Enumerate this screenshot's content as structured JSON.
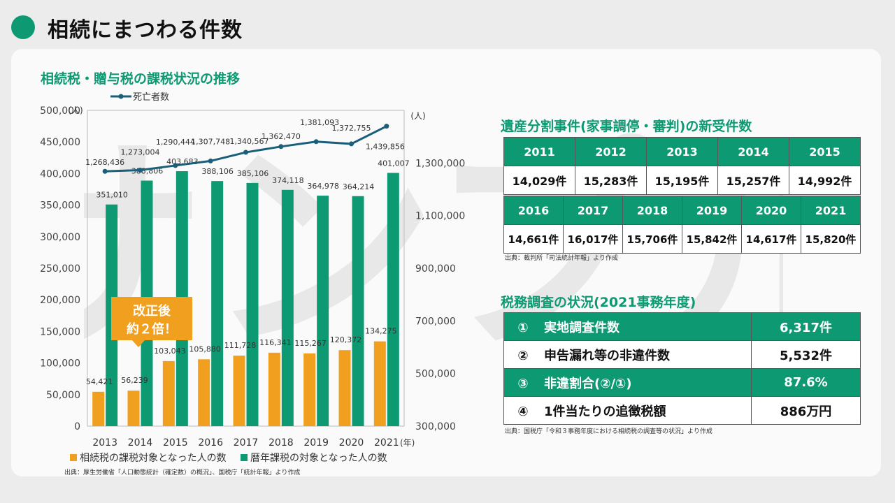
{
  "page": {
    "title": "相続にまつわる件数"
  },
  "chart_section": {
    "title": "相続税・贈与税の課税状況の推移",
    "source": "出典：厚生労働省「人口動態統計（確定数）の概況」、国税庁「統計年報」より作成"
  },
  "watermark": "サンプル",
  "chart_data": {
    "type": "bar",
    "categories": [
      "2013",
      "2014",
      "2015",
      "2016",
      "2017",
      "2018",
      "2019",
      "2020",
      "2021"
    ],
    "x_unit": "(年)",
    "y_left": {
      "unit": "(人)",
      "range": [
        0,
        500000
      ],
      "ticks": [
        "0",
        "50,000",
        "100,000",
        "150,000",
        "200,000",
        "250,000",
        "300,000",
        "350,000",
        "400,000",
        "450,000",
        "500,000"
      ]
    },
    "y_right": {
      "unit": "(人)",
      "range": [
        300000,
        1500000
      ],
      "ticks": [
        "300,000",
        "500,000",
        "700,000",
        "900,000",
        "1,100,000",
        "1,300,000"
      ]
    },
    "series": [
      {
        "name": "相続税の課税対象となった人の数",
        "type": "bar",
        "axis": "left",
        "color": "#f0a01e",
        "values": [
          54421,
          56239,
          103043,
          105880,
          111728,
          116341,
          115267,
          120372,
          134275
        ],
        "labels": [
          "54,421",
          "56,239",
          "103,043",
          "105,880",
          "111,728",
          "116,341",
          "115,267",
          "120,372",
          "134,275"
        ]
      },
      {
        "name": "暦年課税の対象となった人の数",
        "type": "bar",
        "axis": "left",
        "color": "#0d9a73",
        "values": [
          351010,
          388806,
          403683,
          388106,
          385106,
          374118,
          364978,
          364214,
          401007
        ],
        "labels": [
          "351,010",
          "388,806",
          "403,683",
          "388,106",
          "385,106",
          "374,118",
          "364,978",
          "364,214",
          "401,007"
        ]
      },
      {
        "name": "死亡者数",
        "type": "line",
        "axis": "right",
        "color": "#1a5f7a",
        "values": [
          1268436,
          1273004,
          1290444,
          1307748,
          1340567,
          1362470,
          1381093,
          1372755,
          1439856
        ],
        "labels": [
          "1,268,436",
          "1,273,004",
          "1,290,444",
          "1,307,748",
          "1,340,567",
          "1,362,470",
          "1,381,093",
          "1,372,755",
          "1,439,856"
        ]
      }
    ],
    "callout": {
      "line1": "改正後",
      "line2": "約２倍！"
    },
    "legend": {
      "placement": "top-left for line, bottom for bars"
    }
  },
  "division": {
    "title": "遺産分割事件(家事調停・審判)の新受件数",
    "row1": {
      "years": [
        "2011",
        "2012",
        "2013",
        "2014",
        "2015"
      ],
      "counts": [
        "14,029件",
        "15,283件",
        "15,195件",
        "15,257件",
        "14,992件"
      ]
    },
    "row2": {
      "years": [
        "2016",
        "2017",
        "2018",
        "2019",
        "2020",
        "2021"
      ],
      "counts": [
        "14,661件",
        "16,017件",
        "15,706件",
        "15,842件",
        "14,617件",
        "15,820件"
      ]
    },
    "source": "出典：裁判所「司法統計年報」より作成"
  },
  "tax_audit": {
    "title": "税務調査の状況(2021事務年度)",
    "rows": [
      {
        "num": "①",
        "label": "実地調査件数",
        "value": "6,317件"
      },
      {
        "num": "②",
        "label": "申告漏れ等の非違件数",
        "value": "5,532件"
      },
      {
        "num": "③",
        "label": "非違割合(②/①)",
        "value": "87.6%"
      },
      {
        "num": "④",
        "label": "1件当たりの追徴税額",
        "value": "886万円"
      }
    ],
    "source": "出典：国税庁「令和３事務年度における相続税の調査等の状況」より作成"
  },
  "colors": {
    "accent": "#0d9a73",
    "orange": "#f0a01e",
    "line": "#1a5f7a"
  }
}
